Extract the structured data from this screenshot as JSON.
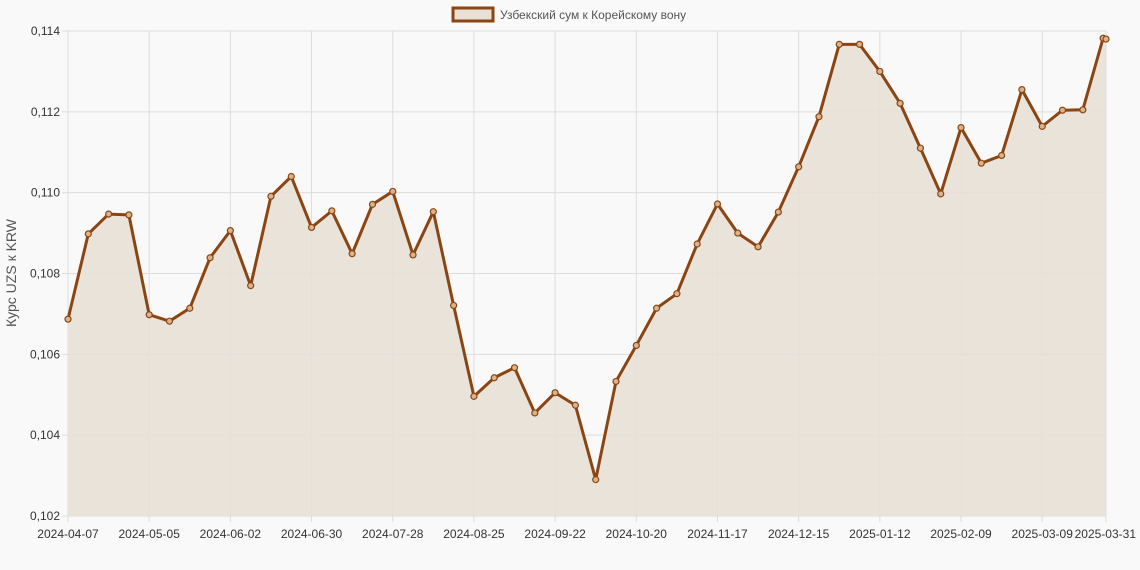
{
  "chart_data": {
    "type": "line",
    "title": "",
    "xlabel": "",
    "ylabel": "Курс UZS к KRW",
    "ylim": [
      0.102,
      0.114
    ],
    "y_ticks": [
      "0,102",
      "0,104",
      "0,106",
      "0,108",
      "0,110",
      "0,112",
      "0,114"
    ],
    "y_tick_values": [
      0.102,
      0.104,
      0.106,
      0.108,
      0.11,
      0.112,
      0.114
    ],
    "x_tick_labels": [
      "2024-04-07",
      "2024-05-05",
      "2024-06-02",
      "2024-06-30",
      "2024-07-28",
      "2024-08-25",
      "2024-09-22",
      "2024-10-20",
      "2024-11-17",
      "2024-12-15",
      "2025-01-12",
      "2025-02-09",
      "2025-03-09",
      "2025-03-31"
    ],
    "grid": true,
    "legend_position": "top-center",
    "line_color": "#8b4513",
    "fill_color": "#e8e0d6",
    "series": [
      {
        "name": "Узбекский сум к Корейскому вону",
        "x": [
          "2024-04-07",
          "2024-04-14",
          "2024-04-21",
          "2024-04-28",
          "2024-05-05",
          "2024-05-12",
          "2024-05-19",
          "2024-05-26",
          "2024-06-02",
          "2024-06-09",
          "2024-06-16",
          "2024-06-23",
          "2024-06-30",
          "2024-07-07",
          "2024-07-14",
          "2024-07-21",
          "2024-07-28",
          "2024-08-04",
          "2024-08-11",
          "2024-08-18",
          "2024-08-25",
          "2024-09-01",
          "2024-09-08",
          "2024-09-15",
          "2024-09-22",
          "2024-09-29",
          "2024-10-06",
          "2024-10-13",
          "2024-10-20",
          "2024-10-27",
          "2024-11-03",
          "2024-11-10",
          "2024-11-17",
          "2024-11-24",
          "2024-12-01",
          "2024-12-08",
          "2024-12-15",
          "2024-12-22",
          "2024-12-29",
          "2025-01-05",
          "2025-01-12",
          "2025-01-19",
          "2025-01-26",
          "2025-02-02",
          "2025-02-09",
          "2025-02-16",
          "2025-02-23",
          "2025-03-02",
          "2025-03-09",
          "2025-03-16",
          "2025-03-23",
          "2025-03-30",
          "2025-03-31"
        ],
        "values": [
          0.10687,
          0.10898,
          0.10947,
          0.10945,
          0.10698,
          0.10682,
          0.10714,
          0.10839,
          0.10906,
          0.1077,
          0.10991,
          0.1104,
          0.10914,
          0.10955,
          0.10849,
          0.10971,
          0.11003,
          0.10846,
          0.10953,
          0.10721,
          0.10496,
          0.10542,
          0.10567,
          0.10455,
          0.10505,
          0.10474,
          0.1029,
          0.10533,
          0.10622,
          0.10714,
          0.1075,
          0.10873,
          0.10972,
          0.109,
          0.10866,
          0.10952,
          0.11064,
          0.11188,
          0.11367,
          0.11367,
          0.113,
          0.11221,
          0.1111,
          0.10997,
          0.11161,
          0.11073,
          0.11092,
          0.11255,
          0.11164,
          0.11204,
          0.11205,
          0.11382,
          0.1138
        ]
      }
    ]
  }
}
